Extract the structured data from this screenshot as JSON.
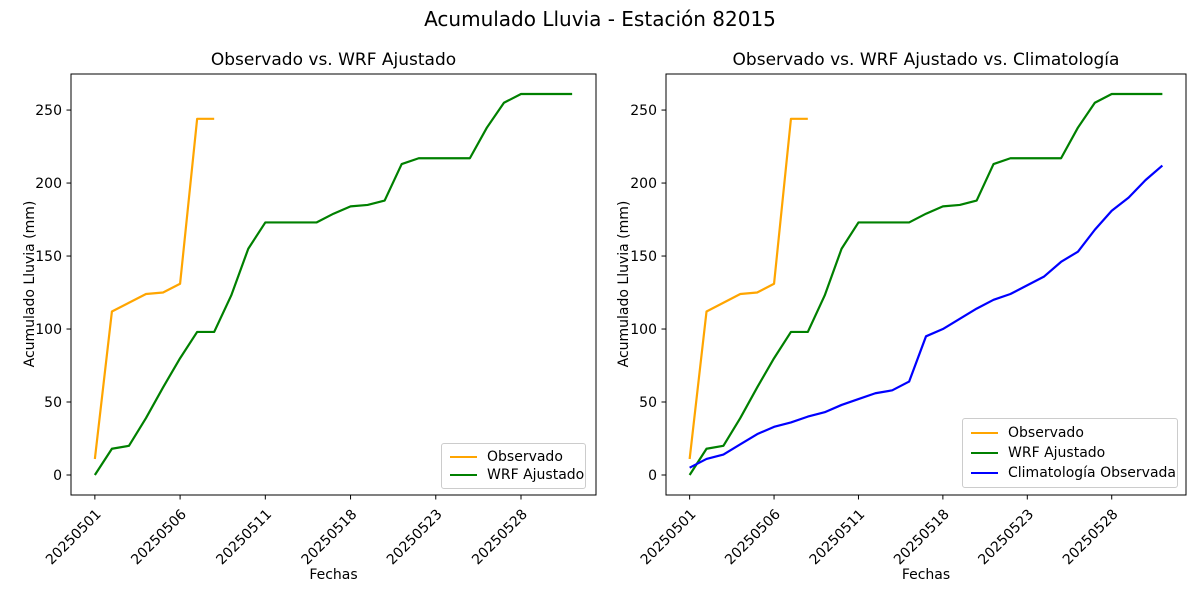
{
  "figure": {
    "title": "Acumulado Lluvia - Estación 82015"
  },
  "chart_data": {
    "type": "line",
    "title": "Acumulado Lluvia - Estación 82015",
    "grid": false,
    "charts": [
      {
        "title": "Observado vs. WRF Ajustado",
        "xlabel": "Fechas",
        "ylabel": "Acumulado Lluvia (mm)",
        "n_points": 29,
        "x_tick_positions": [
          0,
          5,
          10,
          15,
          20,
          25
        ],
        "x_tick_labels": [
          "20250501",
          "20250506",
          "20250511",
          "20250518",
          "20250523",
          "20250528"
        ],
        "y_ticks": [
          0,
          50,
          100,
          150,
          200,
          250
        ],
        "xlim": [
          -1.4,
          29.4
        ],
        "ylim": [
          -13.7,
          274.7
        ],
        "legend_position": "lower right",
        "series": [
          {
            "name": "Observado",
            "color": "#FFA500",
            "values": [
              11,
              112,
              118,
              124,
              125,
              131,
              244,
              244
            ]
          },
          {
            "name": "WRF Ajustado",
            "color": "#008000",
            "values": [
              0,
              18,
              20,
              39,
              60,
              80,
              98,
              98,
              123,
              155,
              173,
              173,
              173,
              173,
              179,
              184,
              185,
              188,
              213,
              217,
              217,
              217,
              217,
              238,
              255,
              261,
              261,
              261,
              261
            ]
          }
        ]
      },
      {
        "title": "Observado vs. WRF Ajustado vs. Climatología",
        "xlabel": "Fechas",
        "ylabel": "Acumulado Lluvia (mm)",
        "n_points": 29,
        "x_tick_positions": [
          0,
          5,
          10,
          15,
          20,
          25
        ],
        "x_tick_labels": [
          "20250501",
          "20250506",
          "20250511",
          "20250518",
          "20250523",
          "20250528"
        ],
        "y_ticks": [
          0,
          50,
          100,
          150,
          200,
          250
        ],
        "xlim": [
          -1.4,
          29.4
        ],
        "ylim": [
          -13.7,
          274.7
        ],
        "legend_position": "lower right",
        "series": [
          {
            "name": "Observado",
            "color": "#FFA500",
            "values": [
              11,
              112,
              118,
              124,
              125,
              131,
              244,
              244
            ]
          },
          {
            "name": "WRF Ajustado",
            "color": "#008000",
            "values": [
              0,
              18,
              20,
              39,
              60,
              80,
              98,
              98,
              123,
              155,
              173,
              173,
              173,
              173,
              179,
              184,
              185,
              188,
              213,
              217,
              217,
              217,
              217,
              238,
              255,
              261,
              261,
              261,
              261
            ]
          },
          {
            "name": "Climatología Observada",
            "color": "#0000FF",
            "values": [
              5,
              11,
              14,
              21,
              28,
              33,
              36,
              40,
              43,
              48,
              52,
              56,
              58,
              64,
              95,
              100,
              107,
              114,
              120,
              124,
              130,
              136,
              146,
              153,
              168,
              181,
              190,
              202,
              212
            ]
          }
        ]
      }
    ]
  }
}
